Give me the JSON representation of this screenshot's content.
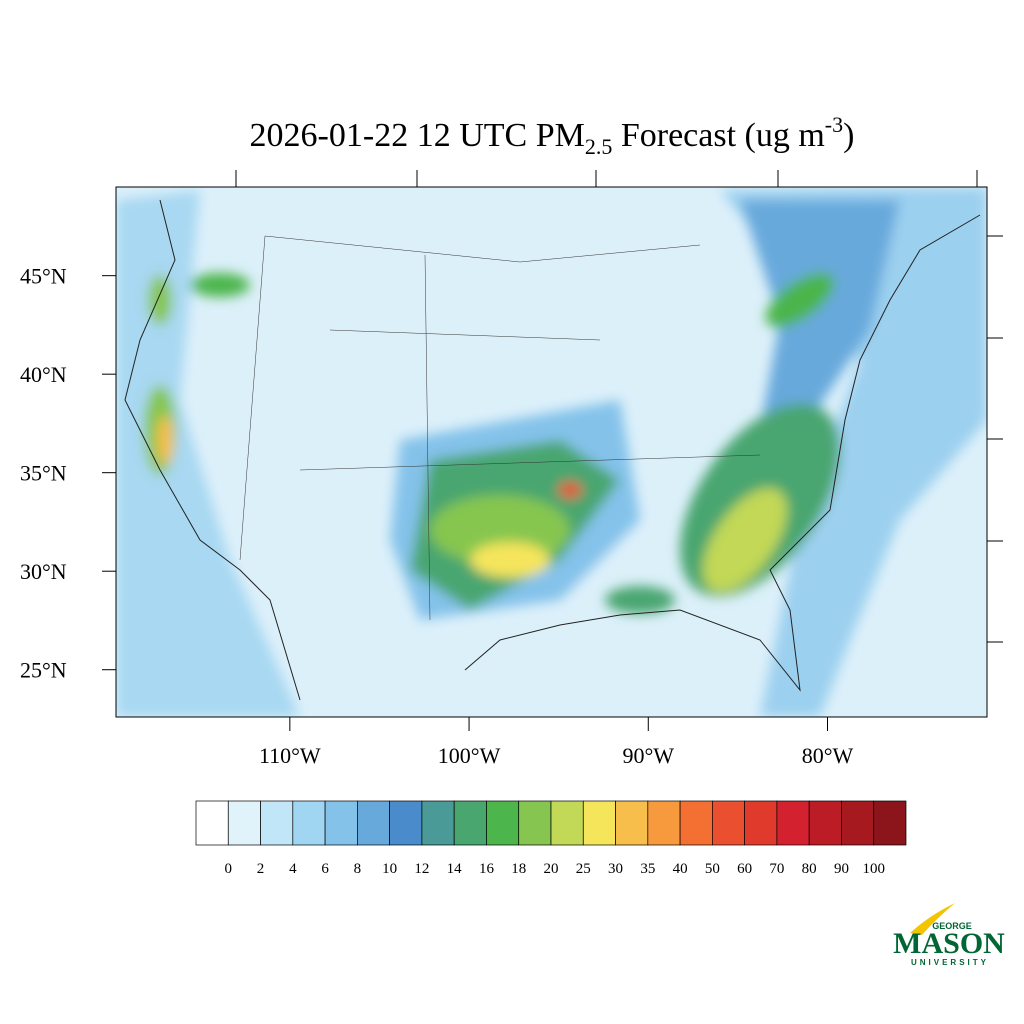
{
  "map": {
    "title": {
      "main": "2026-01-22 12 UTC PM",
      "sub": "2.5",
      "after": " Forecast (ug m",
      "sup": "-3",
      "close": ")"
    },
    "lon_extent": [
      -119.7,
      -71.1
    ],
    "lat_extent": [
      22.6,
      49.5
    ],
    "lat_ticks": [
      {
        "value": 45,
        "label": "45°N"
      },
      {
        "value": 40,
        "label": "40°N"
      },
      {
        "value": 35,
        "label": "35°N"
      },
      {
        "value": 30,
        "label": "30°N"
      },
      {
        "value": 25,
        "label": "25°N"
      }
    ],
    "lon_ticks": [
      {
        "value": -110,
        "label": "110°W"
      },
      {
        "value": -100,
        "label": "100°W"
      },
      {
        "value": -90,
        "label": "90°W"
      },
      {
        "value": -80,
        "label": "80°W"
      }
    ],
    "colorbar": {
      "levels": [
        0,
        2,
        4,
        6,
        8,
        10,
        12,
        14,
        16,
        18,
        20,
        25,
        30,
        35,
        40,
        50,
        60,
        70,
        80,
        90,
        100
      ],
      "colors": [
        "#ffffff",
        "#e0f3fb",
        "#c0e6f7",
        "#a0d6f2",
        "#84c2ea",
        "#68a9dc",
        "#4a8ccb",
        "#4a9a98",
        "#49a66f",
        "#4cb54c",
        "#86c650",
        "#c2d857",
        "#f5e55b",
        "#f7be4c",
        "#f69a3d",
        "#f37032",
        "#ea5030",
        "#df3a2b",
        "#d32130",
        "#bb1c25",
        "#a5191f",
        "#8c151c"
      ]
    },
    "logo": {
      "top": "GEORGE",
      "name": "MASON",
      "bottom": "UNIVERSITY"
    }
  }
}
